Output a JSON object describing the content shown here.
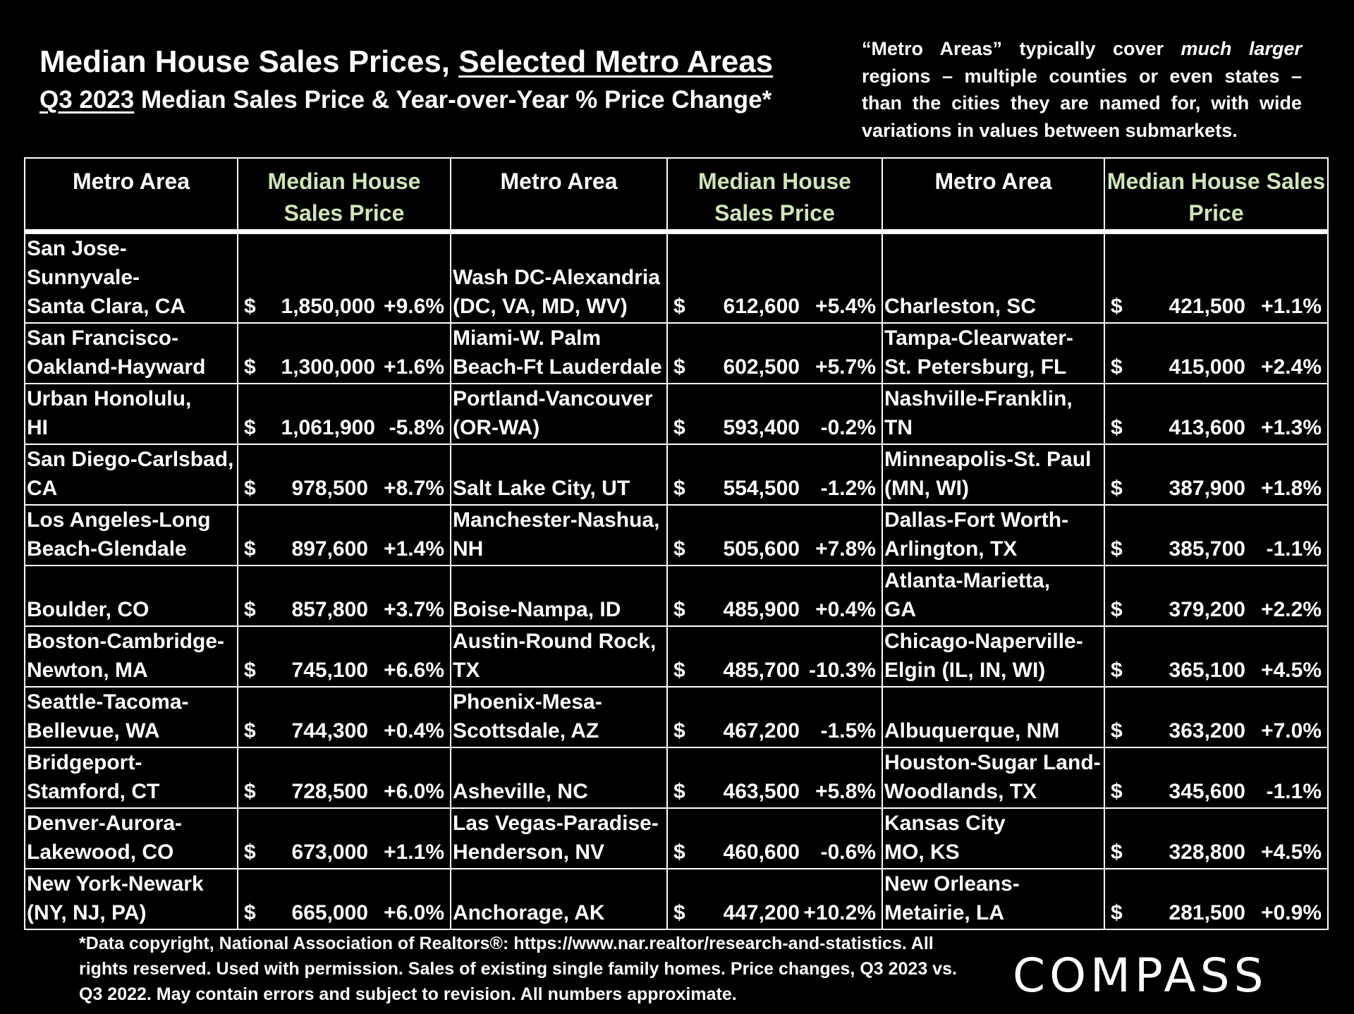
{
  "header": {
    "title_part1": "Median House Sales Prices, ",
    "title_part2": "Selected Metro Areas",
    "subtitle_part1": "Q3 2023",
    "subtitle_part2": " Median Sales Price & Year-over-Year % Price Change*"
  },
  "note": "“Metro Areas” typically cover much larger regions – multiple counties or even states – than the cities they are named for, with wide variations in values between submarkets.",
  "table": {
    "headers": {
      "metro": "Metro Area",
      "price": "Median House Sales Price"
    },
    "rows": [
      [
        {
          "metro": "San Jose-Sunnyvale-\nSanta Clara, CA",
          "dollar": "$",
          "price": "1,850,000",
          "change": "+9.6%"
        },
        {
          "metro": "Wash DC-Alexandria\n (DC, VA, MD, WV)",
          "dollar": "$",
          "price": "612,600",
          "change": "+5.4%"
        },
        {
          "metro": "Charleston, SC",
          "dollar": "$",
          "price": "421,500",
          "change": "+1.1%"
        }
      ],
      [
        {
          "metro": "San Francisco-\nOakland-Hayward",
          "dollar": "$",
          "price": "1,300,000",
          "change": "+1.6%"
        },
        {
          "metro": "Miami-W. Palm\nBeach-Ft Lauderdale",
          "dollar": "$",
          "price": "602,500",
          "change": "+5.7%"
        },
        {
          "metro": "Tampa-Clearwater-\nSt. Petersburg, FL",
          "dollar": "$",
          "price": "415,000",
          "change": "+2.4%"
        }
      ],
      [
        {
          "metro": "Urban Honolulu,\nHI",
          "dollar": "$",
          "price": "1,061,900",
          "change": "-5.8%"
        },
        {
          "metro": "Portland-Vancouver\n(OR-WA)",
          "dollar": "$",
          "price": "593,400",
          "change": "-0.2%"
        },
        {
          "metro": "Nashville-Franklin,\nTN",
          "dollar": "$",
          "price": "413,600",
          "change": "+1.3%"
        }
      ],
      [
        {
          "metro": "San Diego-Carlsbad,\nCA",
          "dollar": "$",
          "price": "978,500",
          "change": "+8.7%"
        },
        {
          "metro": "Salt Lake City, UT",
          "dollar": "$",
          "price": "554,500",
          "change": "-1.2%"
        },
        {
          "metro": "Minneapolis-St. Paul\n(MN, WI)",
          "dollar": "$",
          "price": "387,900",
          "change": "+1.8%"
        }
      ],
      [
        {
          "metro": "Los Angeles-Long\nBeach-Glendale",
          "dollar": "$",
          "price": "897,600",
          "change": "+1.4%"
        },
        {
          "metro": "Manchester-Nashua,\nNH",
          "dollar": "$",
          "price": "505,600",
          "change": "+7.8%"
        },
        {
          "metro": "Dallas-Fort Worth-\nArlington, TX",
          "dollar": "$",
          "price": "385,700",
          "change": "-1.1%"
        }
      ],
      [
        {
          "metro": "Boulder, CO",
          "dollar": "$",
          "price": "857,800",
          "change": "+3.7%"
        },
        {
          "metro": "Boise-Nampa, ID",
          "dollar": "$",
          "price": "485,900",
          "change": "+0.4%"
        },
        {
          "metro": "Atlanta-Marietta,\nGA",
          "dollar": "$",
          "price": "379,200",
          "change": "+2.2%"
        }
      ],
      [
        {
          "metro": "Boston-Cambridge-\nNewton, MA",
          "dollar": "$",
          "price": "745,100",
          "change": "+6.6%"
        },
        {
          "metro": "Austin-Round Rock,\nTX",
          "dollar": "$",
          "price": "485,700",
          "change": "-10.3%"
        },
        {
          "metro": "Chicago-Naperville-\nElgin (IL, IN, WI)",
          "dollar": "$",
          "price": "365,100",
          "change": "+4.5%"
        }
      ],
      [
        {
          "metro": "Seattle-Tacoma-\nBellevue, WA",
          "dollar": "$",
          "price": "744,300",
          "change": "+0.4%"
        },
        {
          "metro": "Phoenix-Mesa-\nScottsdale, AZ",
          "dollar": "$",
          "price": "467,200",
          "change": "-1.5%"
        },
        {
          "metro": "Albuquerque, NM",
          "dollar": "$",
          "price": "363,200",
          "change": "+7.0%"
        }
      ],
      [
        {
          "metro": "Bridgeport-\nStamford, CT",
          "dollar": "$",
          "price": "728,500",
          "change": "+6.0%"
        },
        {
          "metro": "Asheville, NC",
          "dollar": "$",
          "price": "463,500",
          "change": "+5.8%"
        },
        {
          "metro": "Houston-Sugar Land-\nWoodlands, TX",
          "dollar": "$",
          "price": "345,600",
          "change": "-1.1%"
        }
      ],
      [
        {
          "metro": "Denver-Aurora-\nLakewood, CO",
          "dollar": "$",
          "price": "673,000",
          "change": "+1.1%"
        },
        {
          "metro": "Las Vegas-Paradise-\nHenderson, NV",
          "dollar": "$",
          "price": "460,600",
          "change": "-0.6%"
        },
        {
          "metro": "Kansas City\nMO, KS",
          "dollar": "$",
          "price": "328,800",
          "change": "+4.5%"
        }
      ],
      [
        {
          "metro": "New York-Newark\n(NY, NJ, PA)",
          "dollar": "$",
          "price": "665,000",
          "change": "+6.0%"
        },
        {
          "metro": "Anchorage, AK",
          "dollar": "$",
          "price": "447,200",
          "change": "+10.2%"
        },
        {
          "metro": "New Orleans-\nMetairie, LA",
          "dollar": "$",
          "price": "281,500",
          "change": "+0.9%"
        }
      ]
    ]
  },
  "footnote": "*Data copyright, National Association of Realtors®:  https://www.nar.realtor/research-and-statistics. All rights reserved. Used with permission. Sales of existing single family homes. Price changes, Q3 2023 vs. Q3 2022. May contain errors and subject to revision. All numbers approximate.",
  "logo": "COMPASS",
  "colors": {
    "background": "#000000",
    "text": "#ffffff",
    "price_header": "#cfe6b8"
  }
}
